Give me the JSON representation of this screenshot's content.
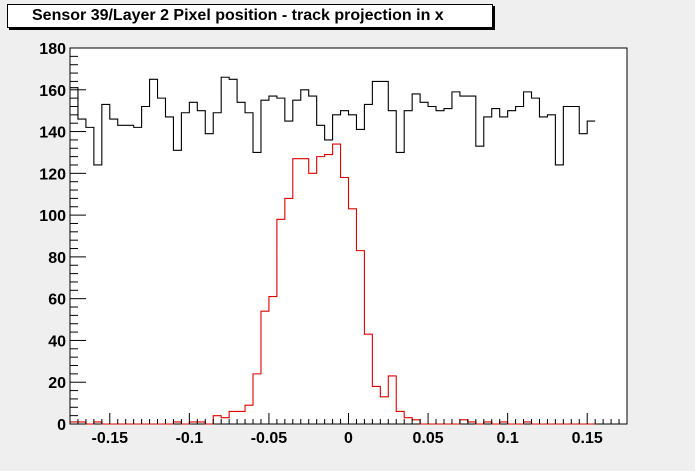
{
  "title": "Sensor 39/Layer 2 Pixel position - track projection in x",
  "colors": {
    "background": "#efefef",
    "frame": "#ffffff",
    "series_black": "#000000",
    "series_red": "#dd0000"
  },
  "chart_data": {
    "type": "histogram",
    "title": "Sensor 39/Layer 2 Pixel position - track projection in x",
    "xlabel": "",
    "ylabel": "",
    "xlim": [
      -0.175,
      0.175
    ],
    "ylim": [
      0,
      180
    ],
    "grid": false,
    "x_ticks": [
      -0.15,
      -0.1,
      -0.05,
      0,
      0.05,
      0.1,
      0.15
    ],
    "x_tick_labels": [
      "-0.15",
      "-0.1",
      "-0.05",
      "0",
      "0.05",
      "0.1",
      "0.15"
    ],
    "y_ticks": [
      0,
      20,
      40,
      60,
      80,
      100,
      120,
      140,
      160,
      180
    ],
    "y_tick_labels": [
      "0",
      "20",
      "40",
      "60",
      "80",
      "100",
      "120",
      "140",
      "160",
      "180"
    ],
    "bin_width": 0.005,
    "bin_start": -0.175,
    "series": [
      {
        "color": "#000000",
        "values": [
          161,
          146,
          142,
          124,
          153,
          146,
          143,
          143,
          142,
          152,
          165,
          156,
          147,
          131,
          149,
          154,
          150,
          139,
          149,
          166,
          165,
          154,
          149,
          130,
          155,
          157,
          156,
          145,
          155,
          160,
          157,
          143,
          136,
          148,
          150,
          148,
          141,
          153,
          164,
          164,
          150,
          130,
          150,
          158,
          154,
          152,
          150,
          151,
          159,
          157,
          157,
          133,
          147,
          151,
          147,
          150,
          152,
          159,
          156,
          147,
          148,
          124,
          152,
          152,
          139,
          145
        ]
      },
      {
        "color": "#dd0000",
        "values": [
          1,
          1,
          0,
          1,
          0,
          0,
          0,
          0,
          0,
          0,
          0,
          0,
          0,
          1,
          0,
          1,
          1,
          0,
          4,
          3,
          6,
          6,
          9,
          24,
          54,
          61,
          98,
          108,
          127,
          127,
          120,
          128,
          129,
          134,
          118,
          103,
          83,
          43,
          18,
          13,
          23,
          6,
          3,
          2,
          0,
          0,
          0,
          0,
          0,
          2,
          1,
          0,
          1,
          0,
          1,
          0,
          0,
          1,
          0,
          0,
          0,
          0,
          0,
          0,
          0,
          0
        ]
      }
    ]
  }
}
